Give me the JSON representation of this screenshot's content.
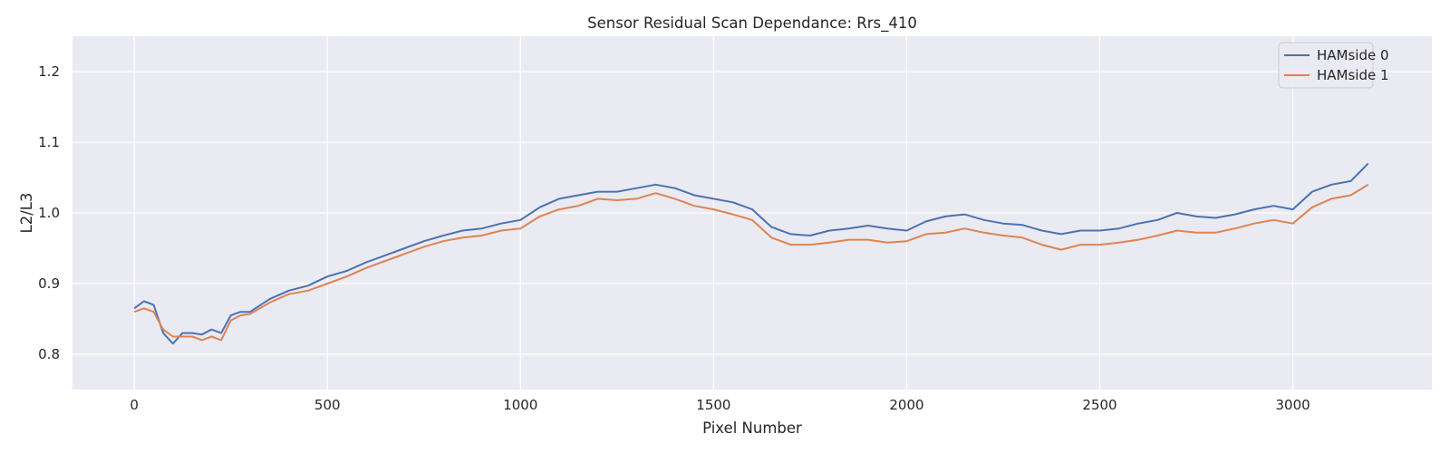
{
  "chart_data": {
    "type": "line",
    "title": "Sensor Residual Scan Dependance: Rrs_410",
    "xlabel": "Pixel Number",
    "ylabel": "L2/L3",
    "xlim": [
      -160,
      3360
    ],
    "ylim": [
      0.75,
      1.25
    ],
    "xticks": [
      0,
      500,
      1000,
      1500,
      2000,
      2500,
      3000
    ],
    "yticks": [
      0.8,
      0.9,
      1.0,
      1.1,
      1.2
    ],
    "xtick_labels": [
      "0",
      "500",
      "1000",
      "1500",
      "2000",
      "2500",
      "3000"
    ],
    "ytick_labels": [
      "0.8",
      "0.9",
      "1.0",
      "1.1",
      "1.2"
    ],
    "grid": true,
    "legend_position": "top-right",
    "background": "#eaeaf2",
    "series": [
      {
        "name": "HAMside 0",
        "color": "#4c72b0",
        "x": [
          0,
          25,
          50,
          75,
          100,
          125,
          150,
          175,
          200,
          225,
          250,
          275,
          300,
          350,
          400,
          450,
          500,
          550,
          600,
          650,
          700,
          750,
          800,
          850,
          900,
          950,
          1000,
          1050,
          1100,
          1150,
          1200,
          1250,
          1300,
          1350,
          1400,
          1450,
          1500,
          1550,
          1600,
          1650,
          1700,
          1750,
          1800,
          1850,
          1900,
          1950,
          2000,
          2050,
          2100,
          2150,
          2200,
          2250,
          2300,
          2350,
          2400,
          2450,
          2500,
          2550,
          2600,
          2650,
          2700,
          2750,
          2800,
          2850,
          2900,
          2950,
          3000,
          3050,
          3100,
          3150,
          3195
        ],
        "values": [
          0.865,
          0.875,
          0.87,
          0.83,
          0.815,
          0.83,
          0.83,
          0.828,
          0.835,
          0.83,
          0.855,
          0.86,
          0.86,
          0.878,
          0.89,
          0.897,
          0.91,
          0.918,
          0.93,
          0.94,
          0.95,
          0.96,
          0.968,
          0.975,
          0.978,
          0.985,
          0.99,
          1.008,
          1.02,
          1.025,
          1.03,
          1.03,
          1.035,
          1.04,
          1.035,
          1.025,
          1.02,
          1.015,
          1.005,
          0.98,
          0.97,
          0.968,
          0.975,
          0.978,
          0.982,
          0.978,
          0.975,
          0.988,
          0.995,
          0.998,
          0.99,
          0.985,
          0.983,
          0.975,
          0.97,
          0.975,
          0.975,
          0.978,
          0.985,
          0.99,
          1.0,
          0.995,
          0.993,
          0.998,
          1.005,
          1.01,
          1.005,
          1.03,
          1.04,
          1.045,
          1.07
        ]
      },
      {
        "name": "HAMside 1",
        "color": "#dd8452",
        "x": [
          0,
          25,
          50,
          75,
          100,
          125,
          150,
          175,
          200,
          225,
          250,
          275,
          300,
          350,
          400,
          450,
          500,
          550,
          600,
          650,
          700,
          750,
          800,
          850,
          900,
          950,
          1000,
          1050,
          1100,
          1150,
          1200,
          1250,
          1300,
          1350,
          1400,
          1450,
          1500,
          1550,
          1600,
          1650,
          1700,
          1750,
          1800,
          1850,
          1900,
          1950,
          2000,
          2050,
          2100,
          2150,
          2200,
          2250,
          2300,
          2350,
          2400,
          2450,
          2500,
          2550,
          2600,
          2650,
          2700,
          2750,
          2800,
          2850,
          2900,
          2950,
          3000,
          3050,
          3100,
          3150,
          3195
        ],
        "values": [
          0.86,
          0.865,
          0.86,
          0.835,
          0.825,
          0.825,
          0.825,
          0.82,
          0.825,
          0.82,
          0.848,
          0.855,
          0.857,
          0.873,
          0.885,
          0.89,
          0.9,
          0.91,
          0.922,
          0.932,
          0.942,
          0.952,
          0.96,
          0.965,
          0.968,
          0.975,
          0.978,
          0.995,
          1.005,
          1.01,
          1.02,
          1.018,
          1.02,
          1.028,
          1.02,
          1.01,
          1.005,
          0.998,
          0.99,
          0.965,
          0.955,
          0.955,
          0.958,
          0.962,
          0.962,
          0.958,
          0.96,
          0.97,
          0.972,
          0.978,
          0.972,
          0.968,
          0.965,
          0.955,
          0.948,
          0.955,
          0.955,
          0.958,
          0.962,
          0.968,
          0.975,
          0.972,
          0.972,
          0.978,
          0.985,
          0.99,
          0.985,
          1.008,
          1.02,
          1.025,
          1.04
        ]
      }
    ]
  }
}
